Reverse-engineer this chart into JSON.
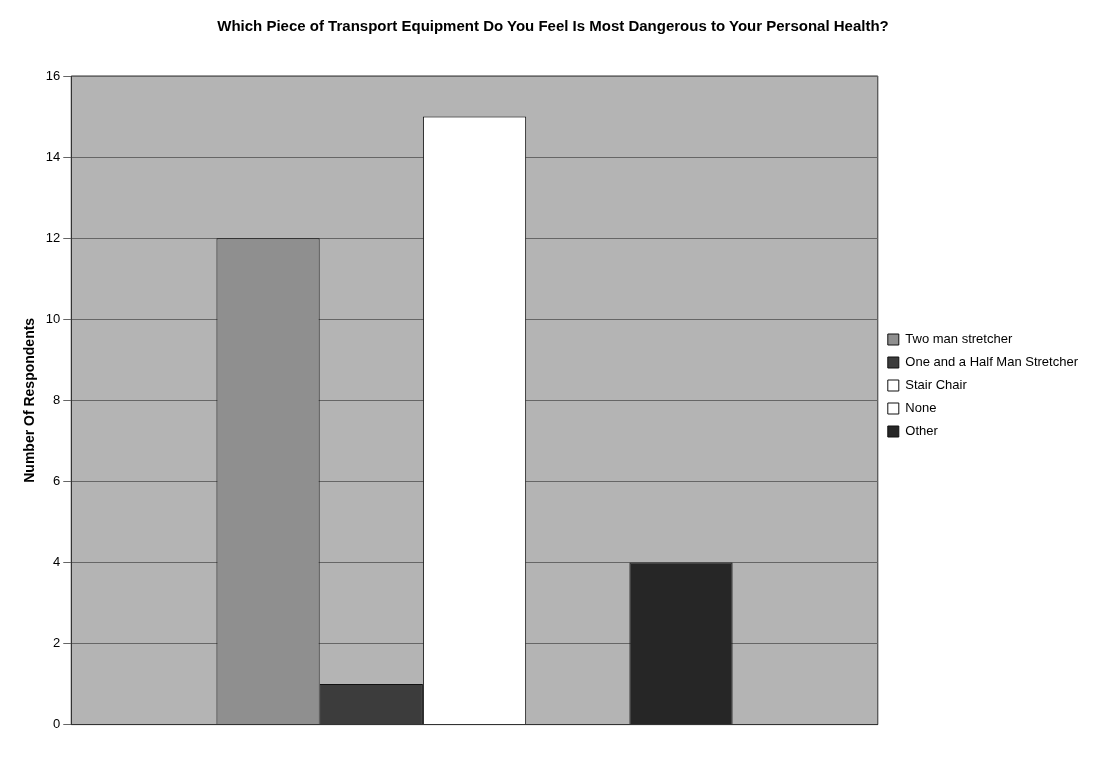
{
  "chart_data": {
    "type": "bar",
    "title": "Which Piece of Transport Equipment Do You Feel Is Most Dangerous to Your Personal Health?",
    "ylabel": "Number Of Respondents",
    "categories": [
      null
    ],
    "series": [
      {
        "name": "Two man stretcher",
        "color": "#8f8f8f",
        "values": [
          12
        ]
      },
      {
        "name": "One and a Half Man Stretcher",
        "color": "#3c3c3c",
        "values": [
          1
        ]
      },
      {
        "name": "Stair Chair",
        "color": "#ffffff",
        "values": [
          15
        ]
      },
      {
        "name": "None",
        "color": "#ffffff",
        "values": [
          0
        ]
      },
      {
        "name": "Other",
        "color": "#262626",
        "values": [
          4
        ]
      }
    ],
    "ylim": [
      0,
      16
    ],
    "yticks": [
      0,
      2,
      4,
      6,
      8,
      10,
      12,
      14,
      16
    ],
    "grid": "y",
    "legend": "right"
  }
}
